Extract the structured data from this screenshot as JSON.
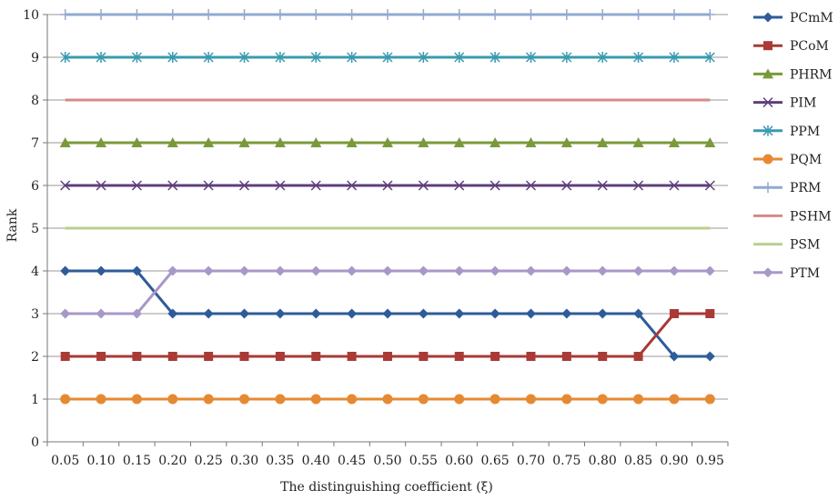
{
  "chart_data": {
    "type": "line",
    "title": "",
    "xlabel": "The distinguishing coefficient (ξ)",
    "ylabel": "Rank",
    "x": [
      "0.05",
      "0.10",
      "0.15",
      "0.20",
      "0.25",
      "0.30",
      "0.35",
      "0.40",
      "0.45",
      "0.50",
      "0.55",
      "0.60",
      "0.65",
      "0.70",
      "0.75",
      "0.80",
      "0.85",
      "0.90",
      "0.95"
    ],
    "ylim": [
      0,
      10
    ],
    "yticks": [
      "0",
      "1",
      "2",
      "3",
      "4",
      "5",
      "6",
      "7",
      "8",
      "9",
      "10"
    ],
    "grid": "horizontal",
    "legend_position": "right",
    "series": [
      {
        "name": "PCmM",
        "color": "#2e5c9a",
        "marker": "diamond",
        "values": [
          4,
          4,
          4,
          3,
          3,
          3,
          3,
          3,
          3,
          3,
          3,
          3,
          3,
          3,
          3,
          3,
          3,
          2,
          2
        ]
      },
      {
        "name": "PCoM",
        "color": "#a93a36",
        "marker": "square",
        "values": [
          2,
          2,
          2,
          2,
          2,
          2,
          2,
          2,
          2,
          2,
          2,
          2,
          2,
          2,
          2,
          2,
          2,
          3,
          3
        ]
      },
      {
        "name": "PHRM",
        "color": "#7a9a3a",
        "marker": "triangle",
        "values": [
          7,
          7,
          7,
          7,
          7,
          7,
          7,
          7,
          7,
          7,
          7,
          7,
          7,
          7,
          7,
          7,
          7,
          7,
          7
        ]
      },
      {
        "name": "PIM",
        "color": "#5e3f7c",
        "marker": "x",
        "values": [
          6,
          6,
          6,
          6,
          6,
          6,
          6,
          6,
          6,
          6,
          6,
          6,
          6,
          6,
          6,
          6,
          6,
          6,
          6
        ]
      },
      {
        "name": "PPM",
        "color": "#3a9ab0",
        "marker": "star",
        "values": [
          9,
          9,
          9,
          9,
          9,
          9,
          9,
          9,
          9,
          9,
          9,
          9,
          9,
          9,
          9,
          9,
          9,
          9,
          9
        ]
      },
      {
        "name": "PQM",
        "color": "#e58a33",
        "marker": "circle",
        "values": [
          1,
          1,
          1,
          1,
          1,
          1,
          1,
          1,
          1,
          1,
          1,
          1,
          1,
          1,
          1,
          1,
          1,
          1,
          1
        ]
      },
      {
        "name": "PRM",
        "color": "#93a9cf",
        "marker": "plus",
        "values": [
          10,
          10,
          10,
          10,
          10,
          10,
          10,
          10,
          10,
          10,
          10,
          10,
          10,
          10,
          10,
          10,
          10,
          10,
          10
        ]
      },
      {
        "name": "PSHM",
        "color": "#d68a8a",
        "marker": "none",
        "values": [
          8,
          8,
          8,
          8,
          8,
          8,
          8,
          8,
          8,
          8,
          8,
          8,
          8,
          8,
          8,
          8,
          8,
          8,
          8
        ]
      },
      {
        "name": "PSM",
        "color": "#b9d08f",
        "marker": "none",
        "values": [
          5,
          5,
          5,
          5,
          5,
          5,
          5,
          5,
          5,
          5,
          5,
          5,
          5,
          5,
          5,
          5,
          5,
          5,
          5
        ]
      },
      {
        "name": "PTM",
        "color": "#a898c8",
        "marker": "diamond",
        "values": [
          3,
          3,
          3,
          4,
          4,
          4,
          4,
          4,
          4,
          4,
          4,
          4,
          4,
          4,
          4,
          4,
          4,
          4,
          4
        ]
      }
    ]
  }
}
